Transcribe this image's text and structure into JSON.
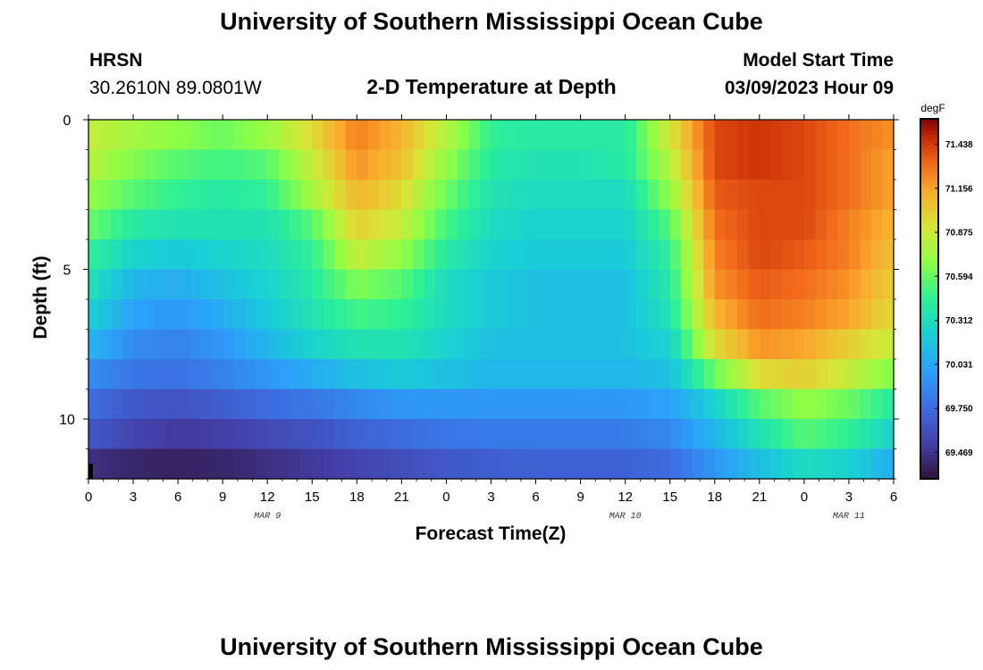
{
  "header": {
    "title": "University of Southern Mississippi Ocean Cube",
    "station_id": "HRSN",
    "coordinates": "30.2610N  89.0801W",
    "subtitle": "2-D Temperature at Depth",
    "model_start_label": "Model Start Time",
    "model_start_value": "03/09/2023 Hour 09"
  },
  "footer": {
    "title": "University of Southern Mississippi Ocean Cube"
  },
  "chart_data": {
    "type": "heatmap",
    "title": "2-D Temperature at Depth",
    "xlabel": "Forecast Time(Z)",
    "ylabel": "Depth (ft)",
    "x_unit": "forecast hours from 00Z Mar 9",
    "x_range": [
      0,
      54
    ],
    "y_range": [
      0,
      12
    ],
    "x_ticks": [
      {
        "x": 0,
        "label": "0"
      },
      {
        "x": 3,
        "label": "3"
      },
      {
        "x": 6,
        "label": "6"
      },
      {
        "x": 9,
        "label": "9"
      },
      {
        "x": 12,
        "label": "12"
      },
      {
        "x": 15,
        "label": "15"
      },
      {
        "x": 18,
        "label": "18"
      },
      {
        "x": 21,
        "label": "21"
      },
      {
        "x": 24,
        "label": "0"
      },
      {
        "x": 27,
        "label": "3"
      },
      {
        "x": 30,
        "label": "6"
      },
      {
        "x": 33,
        "label": "9"
      },
      {
        "x": 36,
        "label": "12"
      },
      {
        "x": 39,
        "label": "15"
      },
      {
        "x": 42,
        "label": "18"
      },
      {
        "x": 45,
        "label": "21"
      },
      {
        "x": 48,
        "label": "0"
      },
      {
        "x": 51,
        "label": "3"
      },
      {
        "x": 54,
        "label": "6"
      }
    ],
    "date_labels": [
      {
        "x": 12,
        "label": "MAR 9"
      },
      {
        "x": 36,
        "label": "MAR 10"
      },
      {
        "x": 51,
        "label": "MAR 11"
      }
    ],
    "y_ticks": [
      {
        "y": 0,
        "label": "0"
      },
      {
        "y": 5,
        "label": "5"
      },
      {
        "y": 10,
        "label": "10"
      }
    ],
    "colorbar": {
      "unit": "degF",
      "min": 69.3,
      "max": 71.6,
      "tick_values": [
        71.438,
        71.156,
        70.875,
        70.594,
        70.312,
        70.031,
        69.75,
        69.469
      ],
      "tick_labels": [
        "71.438",
        "71.156",
        "70.875",
        "70.594",
        "70.312",
        "70.031",
        "69.750",
        "69.469"
      ]
    },
    "time_hours": [
      0,
      3,
      6,
      9,
      12,
      15,
      18,
      21,
      24,
      27,
      30,
      33,
      36,
      39,
      42,
      45,
      48,
      51,
      54
    ],
    "depth_layers_ft": [
      0.5,
      1.5,
      2.5,
      3.5,
      4.5,
      5.5,
      6.5,
      7.5,
      8.5,
      9.5,
      10.5,
      11.5
    ],
    "temperature_degF": [
      [
        70.85,
        70.75,
        70.68,
        70.6,
        70.72,
        70.95,
        71.25,
        71.1,
        70.8,
        70.45,
        70.4,
        70.4,
        70.4,
        70.9,
        71.4,
        71.45,
        71.4,
        71.3,
        71.2
      ],
      [
        70.8,
        70.65,
        70.55,
        70.5,
        70.55,
        70.85,
        71.2,
        71.05,
        70.7,
        70.4,
        70.35,
        70.35,
        70.4,
        70.8,
        71.4,
        71.45,
        71.4,
        71.3,
        71.15
      ],
      [
        70.7,
        70.55,
        70.45,
        70.4,
        70.45,
        70.75,
        71.1,
        70.95,
        70.6,
        70.35,
        70.3,
        70.3,
        70.3,
        70.7,
        71.35,
        71.4,
        71.4,
        71.3,
        71.15
      ],
      [
        70.6,
        70.4,
        70.35,
        70.35,
        70.35,
        70.55,
        71.0,
        70.85,
        70.5,
        70.3,
        70.25,
        70.25,
        70.25,
        70.55,
        71.3,
        71.4,
        71.4,
        71.25,
        71.1
      ],
      [
        70.45,
        70.25,
        70.2,
        70.25,
        70.3,
        70.45,
        70.85,
        70.7,
        70.4,
        70.25,
        70.2,
        70.2,
        70.2,
        70.45,
        71.25,
        71.4,
        71.35,
        71.25,
        71.05
      ],
      [
        70.35,
        70.1,
        70.05,
        70.15,
        70.25,
        70.4,
        70.65,
        70.55,
        70.3,
        70.2,
        70.15,
        70.15,
        70.15,
        70.4,
        71.2,
        71.35,
        71.3,
        71.2,
        71.0
      ],
      [
        70.25,
        70.0,
        69.95,
        70.05,
        70.2,
        70.35,
        70.5,
        70.45,
        70.3,
        70.2,
        70.15,
        70.15,
        70.15,
        70.35,
        71.1,
        71.3,
        71.25,
        71.15,
        70.95
      ],
      [
        70.1,
        69.9,
        69.85,
        69.95,
        70.1,
        70.25,
        70.35,
        70.35,
        70.25,
        70.15,
        70.15,
        70.15,
        70.15,
        70.25,
        70.95,
        71.2,
        71.15,
        71.0,
        70.85
      ],
      [
        69.9,
        69.8,
        69.78,
        69.85,
        69.95,
        70.05,
        70.15,
        70.2,
        70.15,
        70.1,
        70.1,
        70.1,
        70.1,
        70.15,
        70.6,
        70.95,
        71.0,
        70.85,
        70.65
      ],
      [
        69.75,
        69.65,
        69.62,
        69.68,
        69.75,
        69.8,
        69.88,
        69.95,
        69.95,
        69.95,
        69.95,
        69.95,
        69.95,
        70.0,
        70.25,
        70.55,
        70.7,
        70.6,
        70.4
      ],
      [
        69.65,
        69.55,
        69.5,
        69.52,
        69.58,
        69.62,
        69.7,
        69.75,
        69.8,
        69.82,
        69.82,
        69.82,
        69.82,
        69.88,
        70.1,
        70.35,
        70.55,
        70.45,
        70.25
      ],
      [
        69.45,
        69.4,
        69.38,
        69.4,
        69.45,
        69.5,
        69.55,
        69.6,
        69.65,
        69.68,
        69.7,
        69.7,
        69.7,
        69.75,
        69.95,
        70.15,
        70.3,
        70.25,
        70.05
      ]
    ]
  }
}
